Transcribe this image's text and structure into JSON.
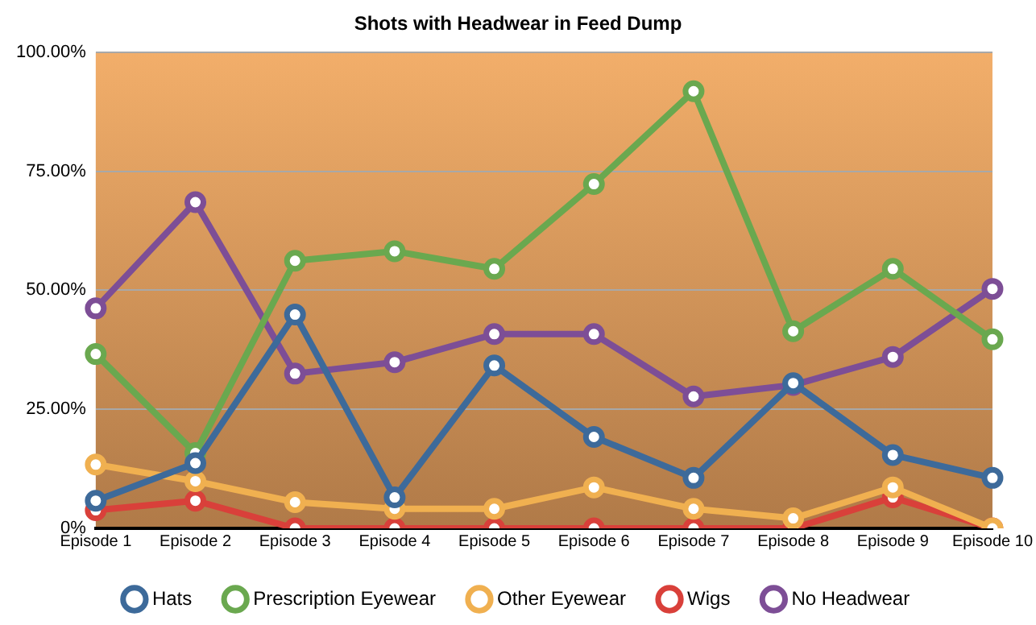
{
  "chart_data": {
    "type": "line",
    "title": "Shots with Headwear in Feed Dump",
    "categories": [
      "Episode 1",
      "Episode 2",
      "Episode 3",
      "Episode 4",
      "Episode 5",
      "Episode 6",
      "Episode 7",
      "Episode 8",
      "Episode 9",
      "Episode 10"
    ],
    "series": [
      {
        "name": "Hats",
        "color": "#3d6a9a",
        "values": [
          5.8,
          13.7,
          44.9,
          6.5,
          34.2,
          19.2,
          10.6,
          30.5,
          15.4,
          10.6
        ]
      },
      {
        "name": "Prescription Eyewear",
        "color": "#6aa84f",
        "values": [
          36.6,
          15.8,
          56.2,
          58.2,
          54.5,
          72.3,
          91.8,
          41.4,
          54.5,
          39.7
        ]
      },
      {
        "name": "Other Eyewear",
        "color": "#f0b050",
        "values": [
          13.4,
          9.9,
          5.5,
          4.1,
          4.1,
          8.6,
          4.1,
          2.1,
          8.6,
          0
        ]
      },
      {
        "name": "Wigs",
        "color": "#d9403a",
        "values": [
          3.8,
          5.8,
          0,
          0,
          0,
          0,
          0,
          0,
          6.5,
          0
        ]
      },
      {
        "name": "No Headwear",
        "color": "#7d4e96",
        "values": [
          46.2,
          68.5,
          32.5,
          34.9,
          40.8,
          40.8,
          27.7,
          30.1,
          36,
          50.3
        ]
      }
    ],
    "ylim": [
      0,
      100
    ],
    "yticks": [
      {
        "value": 0,
        "label": "0%"
      },
      {
        "value": 25,
        "label": "25.00%"
      },
      {
        "value": 50,
        "label": "50.00%"
      },
      {
        "value": 75,
        "label": "75.00%"
      },
      {
        "value": 100,
        "label": "100.00%"
      }
    ],
    "grid": "y",
    "legend": "bottom",
    "marker": "circle",
    "line_style": "solid"
  }
}
